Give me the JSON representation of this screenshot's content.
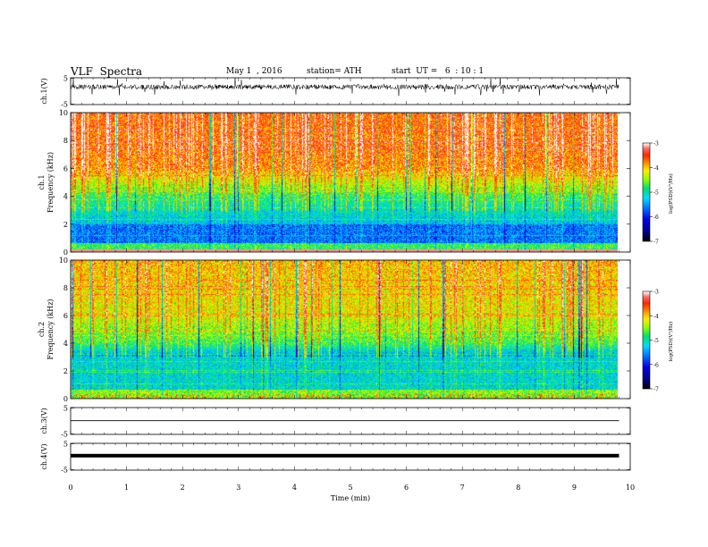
{
  "header": {
    "title": "VLF  Spectra",
    "date": "May 1  , 2016",
    "station": "station= ATH",
    "start": "start  UT =   6  : 10 : 1"
  },
  "chart_data": [
    {
      "id": "ch1-waveform",
      "type": "line",
      "ylabel": "ch.1(V)",
      "ylim": [
        -5,
        5
      ],
      "yticks": [
        "5",
        "-5"
      ],
      "x_range": [
        0,
        9.8
      ],
      "description": "dense oscillating trace centered near 1.6 V"
    },
    {
      "id": "ch1-spectrogram",
      "type": "heatmap",
      "ylabel_1": "ch.1",
      "ylabel_2": "Frequency  (kHz)",
      "ylim": [
        0,
        10
      ],
      "yticks": [
        "0",
        "2",
        "4",
        "6",
        "8",
        "10"
      ],
      "colorbar": {
        "label": "log(PSD)(V²/Hz)",
        "ticks": [
          "-3",
          "-4",
          "-5",
          "-6",
          "-7"
        ],
        "range": [
          -7,
          -3
        ],
        "colors": [
          "#000000",
          "#0000e0",
          "#00c8ff",
          "#00e070",
          "#c8ff00",
          "#ffd000",
          "#ff4000",
          "#ffffff"
        ]
      }
    },
    {
      "id": "ch2-spectrogram",
      "type": "heatmap",
      "ylabel_1": "ch.2",
      "ylabel_2": "Frequency  (kHz)",
      "ylim": [
        0,
        10
      ],
      "yticks": [
        "0",
        "2",
        "4",
        "6",
        "8",
        "10"
      ],
      "colorbar": {
        "label": "log(PSD)(V²/Hz)",
        "ticks": [
          "-3",
          "-4",
          "-5",
          "-6",
          "-7"
        ],
        "range": [
          -7,
          -3
        ]
      }
    },
    {
      "id": "ch3-waveform",
      "type": "line",
      "ylabel": "ch.3(V)",
      "ylim": [
        -5,
        5
      ],
      "yticks": [
        "5",
        "-5"
      ],
      "x_range": [
        0,
        9.8
      ],
      "level": 0.1
    },
    {
      "id": "ch4-waveform",
      "type": "line",
      "ylabel": "ch.4(V)",
      "ylim": [
        -5,
        5
      ],
      "yticks": [
        "5",
        "-5"
      ],
      "x_range": [
        0,
        9.8
      ],
      "level": 0.4
    }
  ],
  "x_axis": {
    "label": "Time  (min)",
    "ticks": [
      "0",
      "1",
      "2",
      "3",
      "4",
      "5",
      "6",
      "7",
      "8",
      "9",
      "10"
    ],
    "range": [
      0,
      10
    ]
  }
}
